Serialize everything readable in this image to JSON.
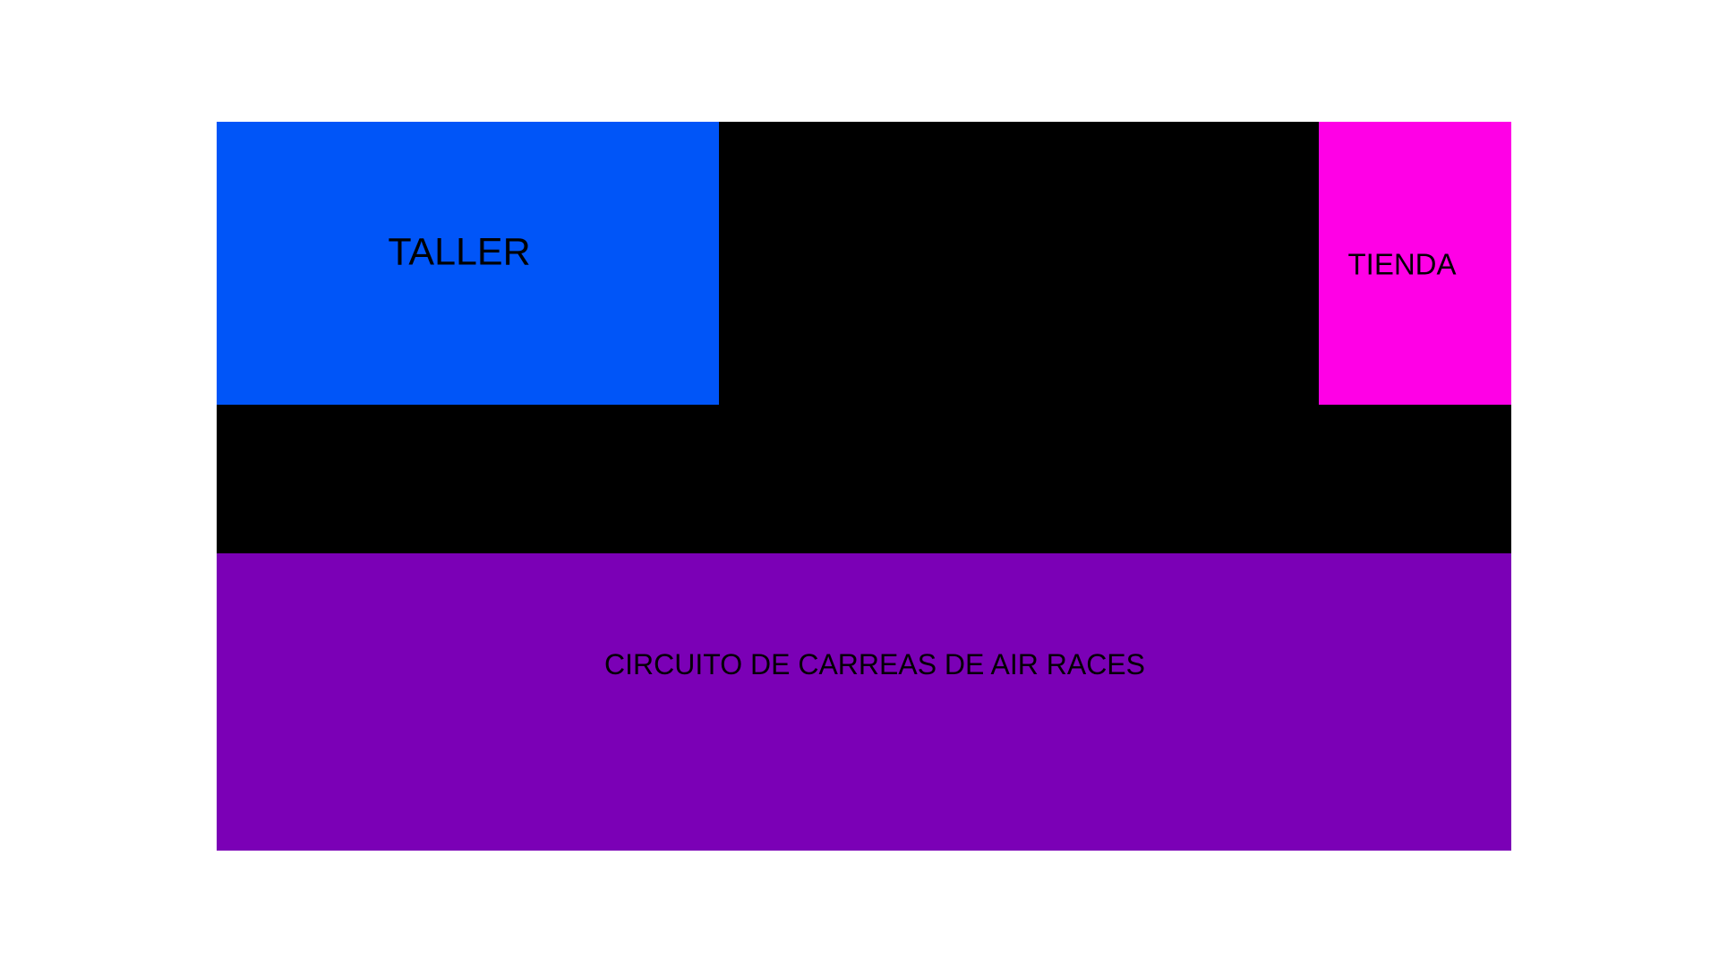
{
  "zones": {
    "background": {
      "color": "#000000"
    },
    "taller": {
      "label": "TALLER",
      "color": "#0055F8"
    },
    "tienda": {
      "label": "TIENDA",
      "color": "#FF00E6"
    },
    "circuito": {
      "label": "CIRCUITO DE CARREAS DE AIR RACES",
      "color": "#7B00B6"
    }
  }
}
